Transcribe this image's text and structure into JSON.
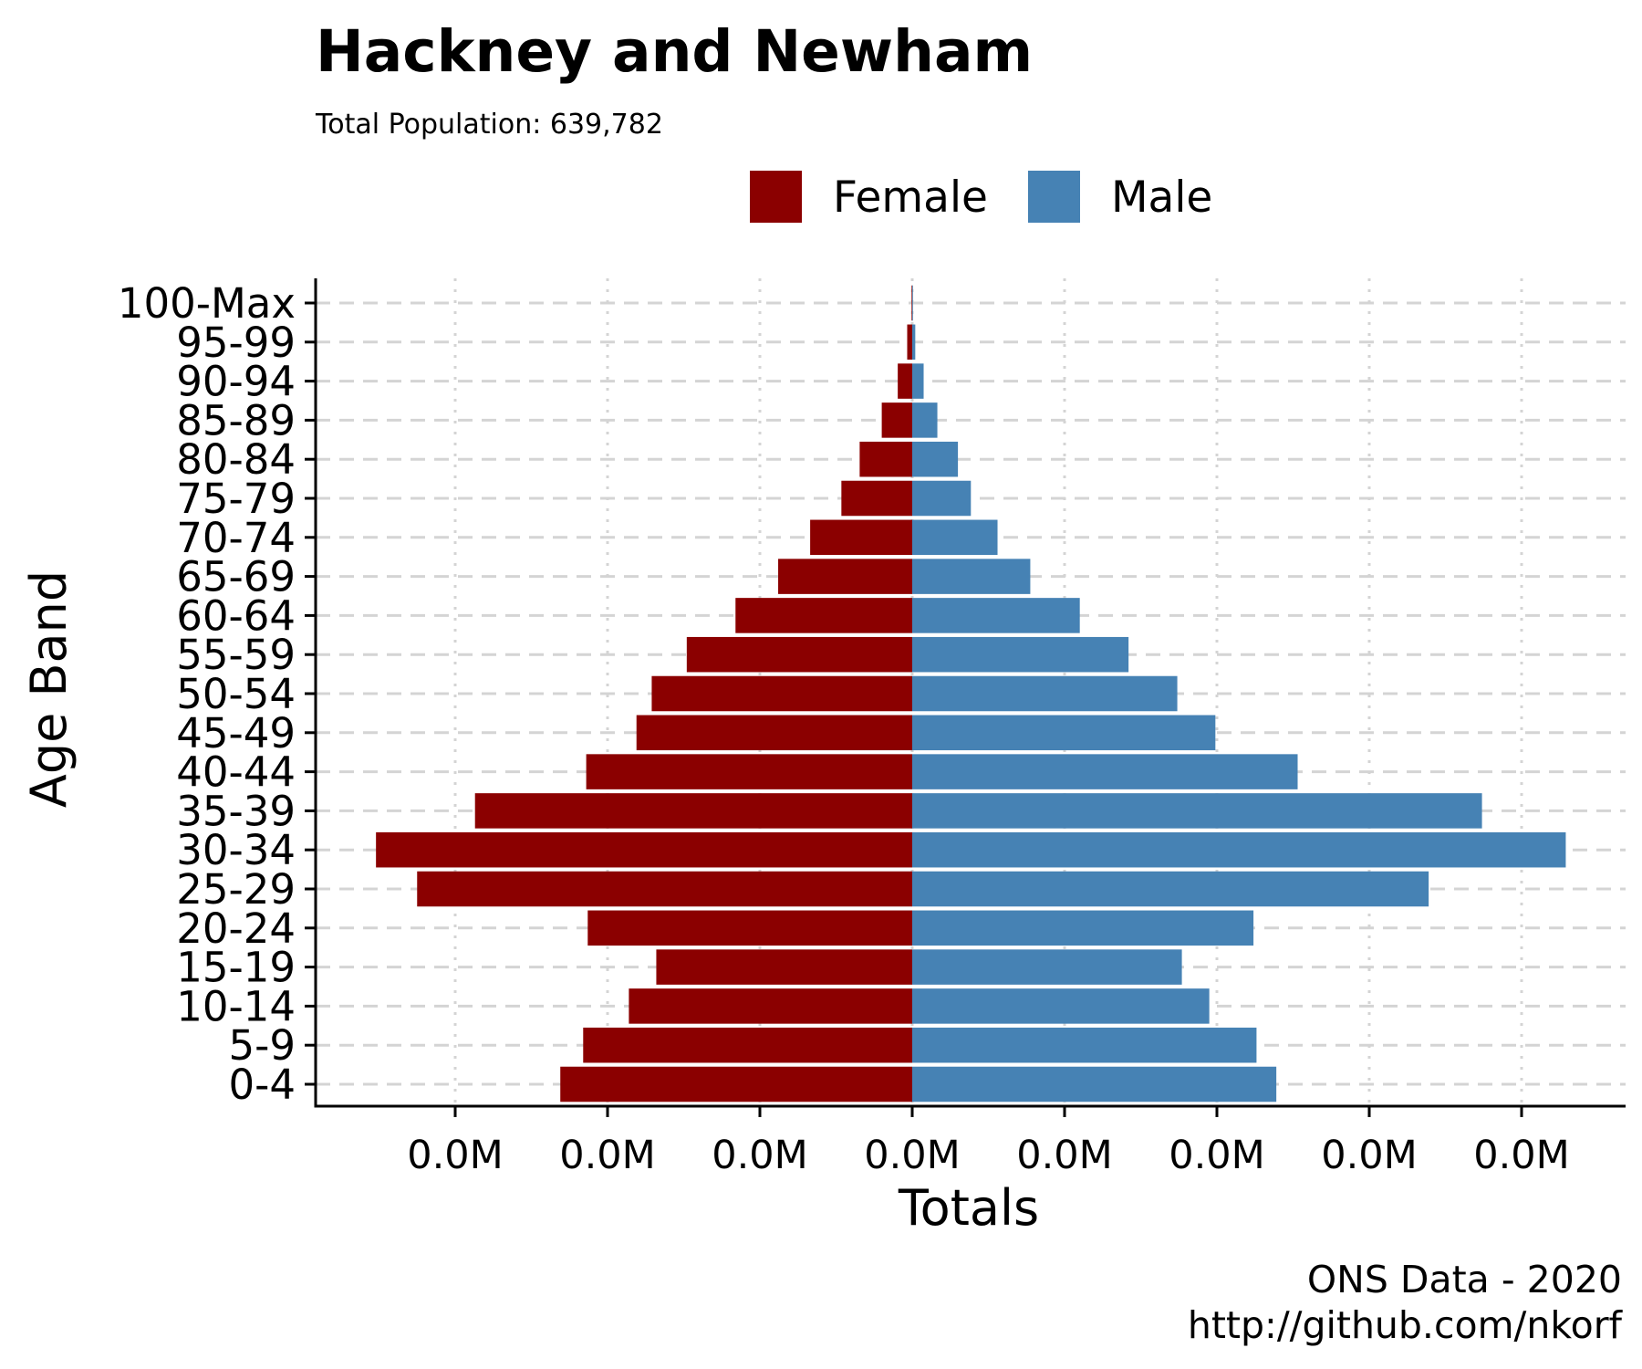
{
  "caption": {
    "line1": "ONS Data - 2020",
    "line2": "http://github.com/nkorf"
  },
  "chart_data": {
    "type": "bar",
    "orientation": "horizontal",
    "title": "Hackney and Newham",
    "subtitle": "Total Population:  639,782",
    "xlabel": "Totals",
    "ylabel": "Age Band",
    "categories": [
      "0-4",
      "5-9",
      "10-14",
      "15-19",
      "20-24",
      "25-29",
      "30-34",
      "35-39",
      "40-44",
      "45-49",
      "50-54",
      "55-59",
      "60-64",
      "65-69",
      "70-74",
      "75-79",
      "80-84",
      "85-89",
      "90-94",
      "95-99",
      "100-Max"
    ],
    "series": [
      {
        "name": "Female",
        "color": "#8B0000",
        "values": [
          -23100,
          -21600,
          -18600,
          -16800,
          -21300,
          -32500,
          -35200,
          -28700,
          -21400,
          -18100,
          -17100,
          -14800,
          -11600,
          -8800,
          -6700,
          -4650,
          -3450,
          -2000,
          -950,
          -330,
          -40
        ]
      },
      {
        "name": "Male",
        "color": "#4682B4",
        "values": [
          23900,
          22600,
          19500,
          17700,
          22400,
          33900,
          42900,
          37400,
          25300,
          19900,
          17400,
          14200,
          11000,
          7750,
          5600,
          3850,
          3000,
          1650,
          750,
          200,
          25
        ]
      }
    ],
    "xticks": [
      -30000,
      -20000,
      -10000,
      0,
      10000,
      20000,
      30000,
      40000
    ],
    "xtick_labels": [
      "0.0M",
      "0.0M",
      "0.0M",
      "0.0M",
      "0.0M",
      "0.0M",
      "0.0M",
      "0.0M"
    ],
    "xlim": [
      -38500,
      46000
    ],
    "grid": true,
    "legend_position": "top"
  }
}
